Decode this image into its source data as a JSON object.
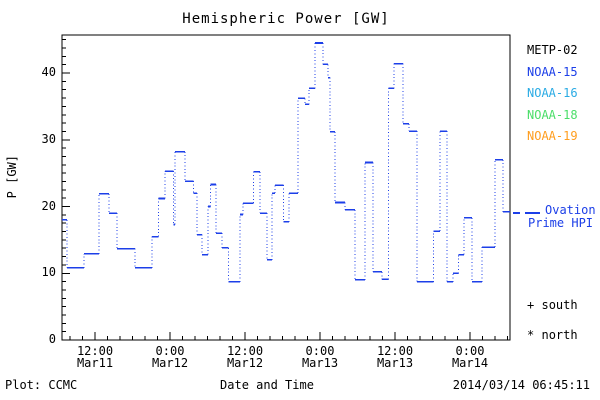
{
  "title": "Hemispheric Power [GW]",
  "axes": {
    "y_label": "P [GW]",
    "x_label": "Date and Time",
    "y_major_ticks": [
      0,
      10,
      20,
      30,
      40
    ],
    "x_tick_labels": [
      {
        "time": "12:00",
        "date": "Mar11"
      },
      {
        "time": "0:00",
        "date": "Mar12"
      },
      {
        "time": "12:00",
        "date": "Mar12"
      },
      {
        "time": "0:00",
        "date": "Mar13"
      },
      {
        "time": "12:00",
        "date": "Mar13"
      },
      {
        "time": "0:00",
        "date": "Mar14"
      }
    ]
  },
  "legend": {
    "satellites": [
      {
        "label": "METP-02",
        "color": "#000000"
      },
      {
        "label": "NOAA-15",
        "color": "#1c3fe8"
      },
      {
        "label": "NOAA-16",
        "color": "#2aabe4"
      },
      {
        "label": "NOAA-18",
        "color": "#4ade68"
      },
      {
        "label": "NOAA-19",
        "color": "#ff9d1e"
      }
    ],
    "line": {
      "label_line1": "Ovation",
      "label_line2": "Prime HPI",
      "color": "#1c3fe8"
    },
    "markers": [
      {
        "symbol": "+",
        "label": "south"
      },
      {
        "symbol": "*",
        "label": "north"
      }
    ]
  },
  "footer": {
    "left": "Plot: CCMC",
    "right": "2014/03/14 06:45:11"
  },
  "chart_data": {
    "type": "line",
    "style": "dotted-step",
    "title": "Hemispheric Power [GW]",
    "xlabel": "Date and Time",
    "ylabel": "P [GW]",
    "ylim": [
      0,
      45.7
    ],
    "x_span_hours": 71.68,
    "x_start": "2014-03-11 ~06:45",
    "x_end": "2014-03-14 ~06:30",
    "x_major_ticks_hours": [
      5.28,
      17.28,
      29.28,
      41.28,
      53.28,
      65.28
    ],
    "x_minor_tick_step_hours": 2,
    "y_minor_tick_step": 1.25,
    "grid": false,
    "legend_position": "right",
    "series": [
      {
        "name": "Ovation Prime HPI",
        "color": "#1c3fe8",
        "units": "GW",
        "steps": [
          [
            0.0,
            18.0
          ],
          [
            0.8,
            10.8
          ],
          [
            3.5,
            12.9
          ],
          [
            5.9,
            21.9
          ],
          [
            7.5,
            19.0
          ],
          [
            8.8,
            13.7
          ],
          [
            11.7,
            10.8
          ],
          [
            14.4,
            15.5
          ],
          [
            15.4,
            21.2
          ],
          [
            16.5,
            25.3
          ],
          [
            17.8,
            17.3
          ],
          [
            18.1,
            28.2
          ],
          [
            19.7,
            23.8
          ],
          [
            21.0,
            22.0
          ],
          [
            21.6,
            15.8
          ],
          [
            22.4,
            12.8
          ],
          [
            23.4,
            20.0
          ],
          [
            23.8,
            23.3
          ],
          [
            24.6,
            16.0
          ],
          [
            25.6,
            13.8
          ],
          [
            26.6,
            8.7
          ],
          [
            28.5,
            18.8
          ],
          [
            29.0,
            20.5
          ],
          [
            30.6,
            25.2
          ],
          [
            31.7,
            19.0
          ],
          [
            32.8,
            12.0
          ],
          [
            33.6,
            22.0
          ],
          [
            34.1,
            23.2
          ],
          [
            35.4,
            17.7
          ],
          [
            36.3,
            22.0
          ],
          [
            37.8,
            36.2
          ],
          [
            38.9,
            35.3
          ],
          [
            39.5,
            37.7
          ],
          [
            40.5,
            44.5
          ],
          [
            41.8,
            41.3
          ],
          [
            42.6,
            39.3
          ],
          [
            42.9,
            31.2
          ],
          [
            43.7,
            20.6
          ],
          [
            45.3,
            19.5
          ],
          [
            46.9,
            9.0
          ],
          [
            48.5,
            26.6
          ],
          [
            49.8,
            10.2
          ],
          [
            51.2,
            9.1
          ],
          [
            52.2,
            37.7
          ],
          [
            53.1,
            41.4
          ],
          [
            54.6,
            32.4
          ],
          [
            55.5,
            31.3
          ],
          [
            56.8,
            8.7
          ],
          [
            59.4,
            16.3
          ],
          [
            60.5,
            31.3
          ],
          [
            61.6,
            8.7
          ],
          [
            62.6,
            10.0
          ],
          [
            63.4,
            12.8
          ],
          [
            64.3,
            18.3
          ],
          [
            65.6,
            8.7
          ],
          [
            67.2,
            13.9
          ],
          [
            69.3,
            27.0
          ],
          [
            70.6,
            19.2
          ]
        ]
      }
    ]
  }
}
